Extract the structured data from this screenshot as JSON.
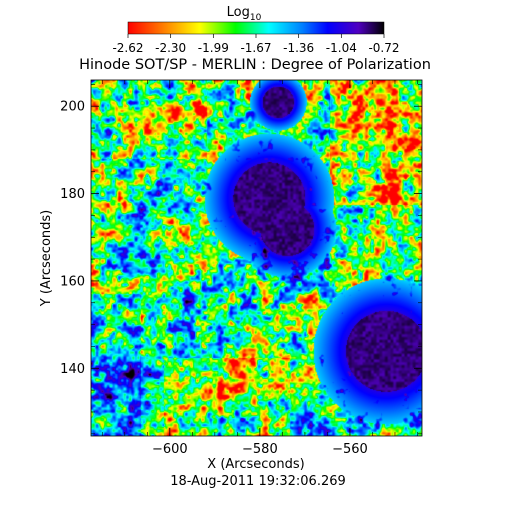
{
  "chart_data": {
    "type": "heatmap",
    "title": "Hinode SOT/SP - MERLIN : Degree of Polarization",
    "xlabel": "X (Arcseconds)",
    "ylabel": "Y (Arcseconds)",
    "timestamp": "18-Aug-2011 19:32:06.269",
    "colorbar": {
      "label_main": "Log",
      "label_sub": "10",
      "range": [
        -2.62,
        -0.72
      ],
      "ticks": [
        "-2.62",
        "-2.30",
        "-1.99",
        "-1.67",
        "-1.36",
        "-1.04",
        "-0.72"
      ]
    },
    "xlim": [
      -617.5,
      -544
    ],
    "ylim": [
      124.5,
      206
    ],
    "xticks": [
      -600,
      -580,
      -560
    ],
    "yticks": [
      140,
      160,
      180,
      200
    ],
    "colormap": "rainbow",
    "colormap_stops": [
      "#ff0000",
      "#ff8800",
      "#ffff00",
      "#00ff00",
      "#00ffff",
      "#0080ff",
      "#0000ff",
      "#5000c0",
      "#000000"
    ],
    "features": [
      {
        "name": "pore",
        "x": -578,
        "y": 179,
        "radius": 8,
        "value": -0.75
      },
      {
        "name": "pore",
        "x": -574,
        "y": 172,
        "radius": 6,
        "value": -0.75
      },
      {
        "name": "pore",
        "x": -576,
        "y": 201,
        "radius": 3.5,
        "value": -0.72
      },
      {
        "name": "pore",
        "x": -552,
        "y": 144,
        "radius": 9,
        "value": -0.72
      }
    ]
  }
}
